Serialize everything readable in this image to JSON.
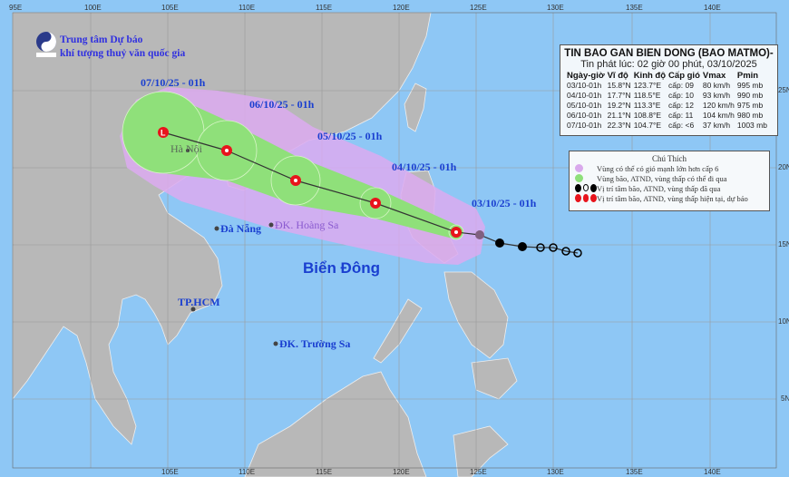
{
  "organization": {
    "line1": "Trung tâm Dự báo",
    "line2": "khí tượng thuỷ văn quốc gia",
    "logo_text": "NCHMF"
  },
  "info_box": {
    "title": "TIN BAO GAN BIEN DONG (BAO MATMO)-",
    "issued": "Tin phát lúc: 02 giờ 00 phút, 03/10/2025",
    "headers": [
      "Ngày-giờ",
      "Vĩ độ",
      "Kinh độ",
      "Cấp gió",
      "Vmax",
      "Pmin"
    ],
    "rows": [
      [
        "03/10-01h",
        "15.8°N",
        "123.7°E",
        "cấp: 09",
        "80 km/h",
        "995 mb"
      ],
      [
        "04/10-01h",
        "17.7°N",
        "118.5°E",
        "cấp: 10",
        "93 km/h",
        "990 mb"
      ],
      [
        "05/10-01h",
        "19.2°N",
        "113.3°E",
        "cấp: 12",
        "120 km/h",
        "975 mb"
      ],
      [
        "06/10-01h",
        "21.1°N",
        "108.8°E",
        "cấp: 11",
        "104 km/h",
        "980 mb"
      ],
      [
        "07/10-01h",
        "22.3°N",
        "104.7°E",
        "cấp: <6",
        "37 km/h",
        "1003 mb"
      ]
    ]
  },
  "legend": {
    "title": "Chú Thích",
    "items": [
      {
        "text": "Vùng có thể có gió mạnh lớn hơn cấp 6",
        "color": "#d9a9ec"
      },
      {
        "text": "Vùng bão, ATND, vùng thấp có thể đi qua",
        "color": "#8fe07a"
      },
      {
        "text": "Vị trí tâm bão, ATND, vùng thấp đã qua",
        "color": "#000000"
      },
      {
        "text": "Vị trí tâm bão, ATND, vùng thấp hiện tại, dự báo",
        "color": "#e8141c"
      }
    ]
  },
  "track_labels": [
    "03/10/25 - 01h",
    "04/10/25 - 01h",
    "05/10/25 - 01h",
    "06/10/25 - 01h",
    "07/10/25 - 01h"
  ],
  "places": {
    "hanoi": "Hà Nội",
    "danang": "Đà Nẵng",
    "hoangsa": "ĐK. Hoàng Sa",
    "hcm": "TP.HCM",
    "truongsa": "ĐK. Trường Sa",
    "sea": "Biển Đông"
  },
  "axes": {
    "lon_top": [
      "95E",
      "100E",
      "105E",
      "110E",
      "115E",
      "120E",
      "125E",
      "130E",
      "135E",
      "140E"
    ],
    "lon_bottom": [
      "105E",
      "110E",
      "115E",
      "120E",
      "125E",
      "130E",
      "135E",
      "140E"
    ],
    "lat_right": [
      "25N",
      "20N",
      "15N",
      "10N",
      "5N"
    ]
  },
  "forecast_points": [
    {
      "time": "03/10-01h",
      "lat": 15.8,
      "lon": 123.7,
      "symbol": "storm"
    },
    {
      "time": "04/10-01h",
      "lat": 17.7,
      "lon": 118.5,
      "symbol": "storm"
    },
    {
      "time": "05/10-01h",
      "lat": 19.2,
      "lon": 113.3,
      "symbol": "storm"
    },
    {
      "time": "06/10-01h",
      "lat": 21.1,
      "lon": 108.8,
      "symbol": "storm"
    },
    {
      "time": "07/10-01h",
      "lat": 22.3,
      "lon": 104.7,
      "symbol": "low"
    }
  ],
  "colors": {
    "sea": "#8ec7f5",
    "land": "#b8b8b8",
    "wind_zone": "#dcaaf0",
    "cone": "#8fe07a",
    "current": "#e8141c"
  }
}
